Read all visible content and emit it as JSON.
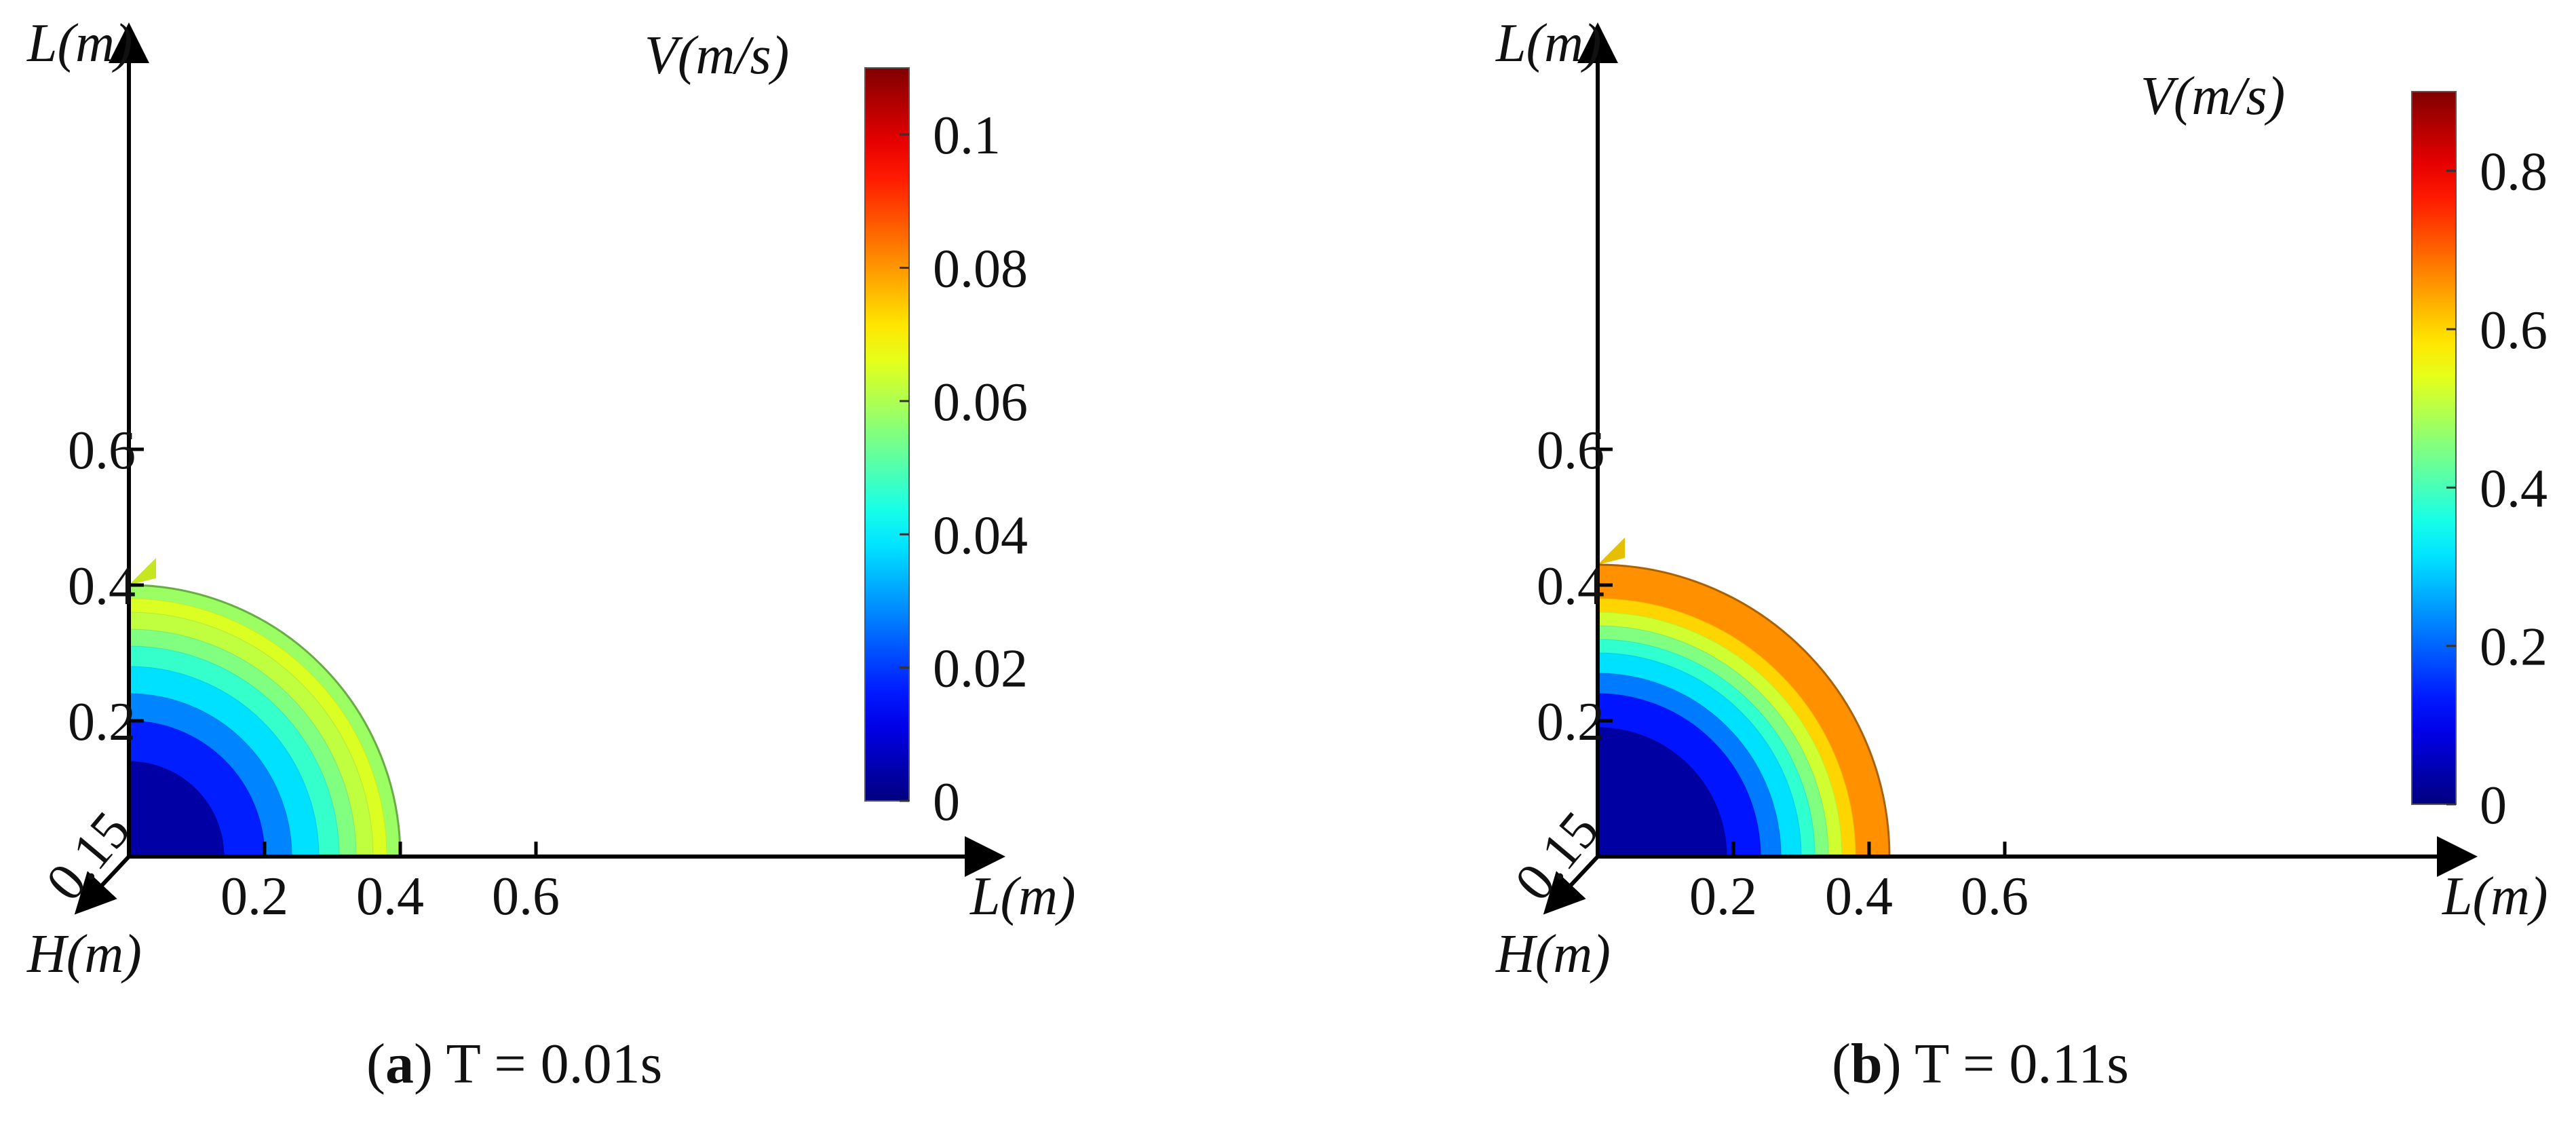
{
  "chart_data": [
    {
      "type": "contour",
      "panel_label": "a",
      "caption": "T = 0.01s",
      "axes": {
        "vertical_label": "L(m)",
        "horizontal_label": "L(m)",
        "depth_label": "H(m)"
      },
      "vertical_ticks": [
        "0.2",
        "0.4",
        "0.6"
      ],
      "horizontal_ticks": [
        "0.2",
        "0.4",
        "0.6"
      ],
      "depth_ticks": [
        "0.15"
      ],
      "colorbar": {
        "label": "V(m/s)",
        "min": 0,
        "max": 0.11,
        "ticks": [
          "0",
          "0.02",
          "0.04",
          "0.06",
          "0.08",
          "0.1"
        ]
      },
      "bands": [
        {
          "r_max": 0.14,
          "value": 0.004
        },
        {
          "r_max": 0.2,
          "value": 0.017
        },
        {
          "r_max": 0.24,
          "value": 0.028
        },
        {
          "r_max": 0.28,
          "value": 0.038
        },
        {
          "r_max": 0.31,
          "value": 0.047
        },
        {
          "r_max": 0.335,
          "value": 0.055
        },
        {
          "r_max": 0.36,
          "value": 0.062
        },
        {
          "r_max": 0.38,
          "value": 0.065
        },
        {
          "r_max": 0.4,
          "value": 0.058
        }
      ],
      "front_max": 0.4
    },
    {
      "type": "contour",
      "panel_label": "b",
      "caption": "T = 0.11s",
      "axes": {
        "vertical_label": "L(m)",
        "horizontal_label": "L(m)",
        "depth_label": "H(m)"
      },
      "vertical_ticks": [
        "0.2",
        "0.4",
        "0.6"
      ],
      "horizontal_ticks": [
        "0.2",
        "0.4",
        "0.6"
      ],
      "depth_ticks": [
        "0.15"
      ],
      "colorbar": {
        "label": "V(m/s)",
        "min": 0,
        "max": 0.9,
        "ticks": [
          "0",
          "0.2",
          "0.4",
          "0.6",
          "0.8"
        ]
      },
      "bands": [
        {
          "r_max": 0.19,
          "value": 0.03
        },
        {
          "r_max": 0.24,
          "value": 0.13
        },
        {
          "r_max": 0.27,
          "value": 0.22
        },
        {
          "r_max": 0.3,
          "value": 0.31
        },
        {
          "r_max": 0.32,
          "value": 0.38
        },
        {
          "r_max": 0.34,
          "value": 0.45
        },
        {
          "r_max": 0.36,
          "value": 0.52
        },
        {
          "r_max": 0.38,
          "value": 0.6
        },
        {
          "r_max": 0.43,
          "value": 0.66
        }
      ],
      "front_max": 0.43
    }
  ]
}
